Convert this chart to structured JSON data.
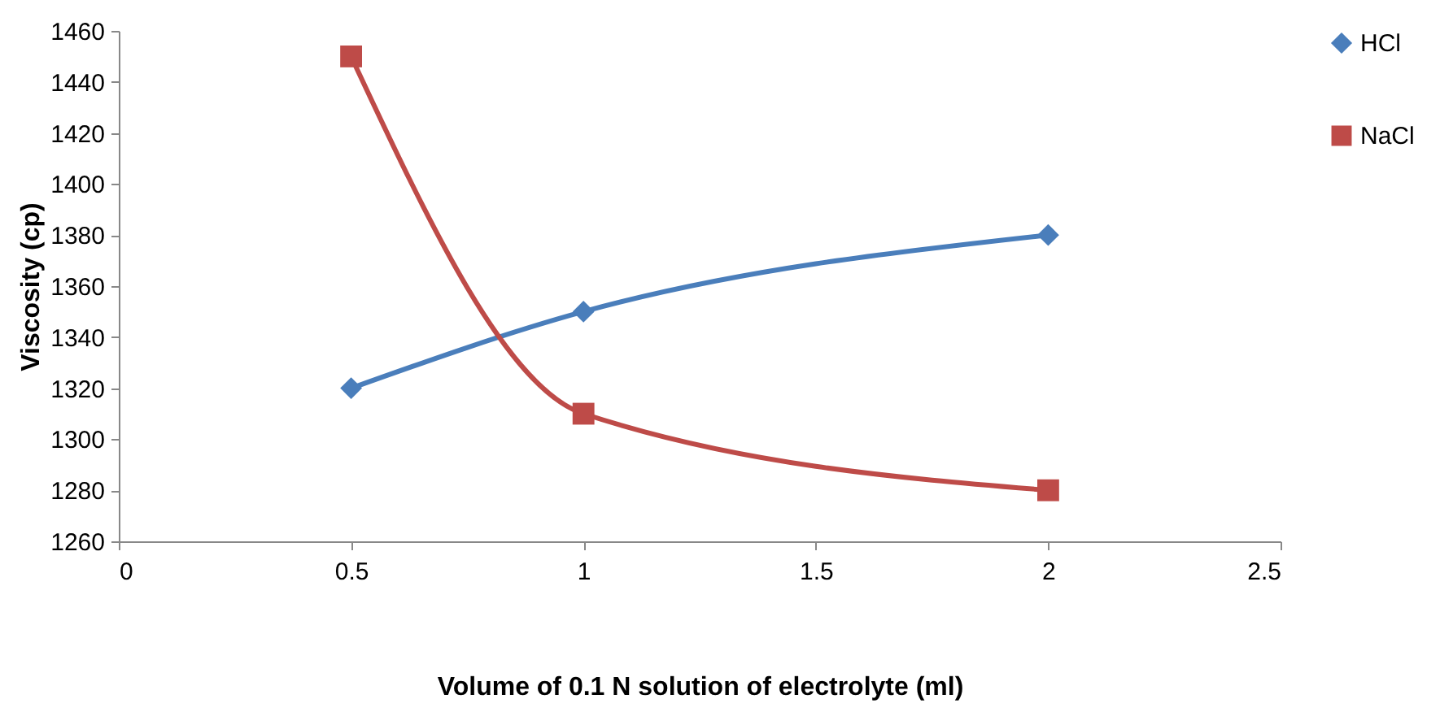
{
  "chart_data": {
    "type": "line",
    "xlabel": "Volume of 0.1 N solution of electrolyte (ml)",
    "ylabel": "Viscosity  (cp)",
    "x": [
      0.5,
      1,
      2
    ],
    "series": [
      {
        "name": "HCl",
        "color": "#4a7ebb",
        "marker": "diamond",
        "values": [
          1320,
          1350,
          1380
        ]
      },
      {
        "name": "NaCl",
        "color": "#be4b48",
        "marker": "square",
        "values": [
          1450,
          1310,
          1280
        ]
      }
    ],
    "xlim": [
      0,
      2.5
    ],
    "xticks": [
      0,
      0.5,
      1,
      1.5,
      2,
      2.5
    ],
    "ylim": [
      1260,
      1460
    ],
    "yticks": [
      1260,
      1280,
      1300,
      1320,
      1340,
      1360,
      1380,
      1400,
      1420,
      1440,
      1460
    ],
    "grid": false,
    "legend": "right",
    "line_style": "solid"
  }
}
